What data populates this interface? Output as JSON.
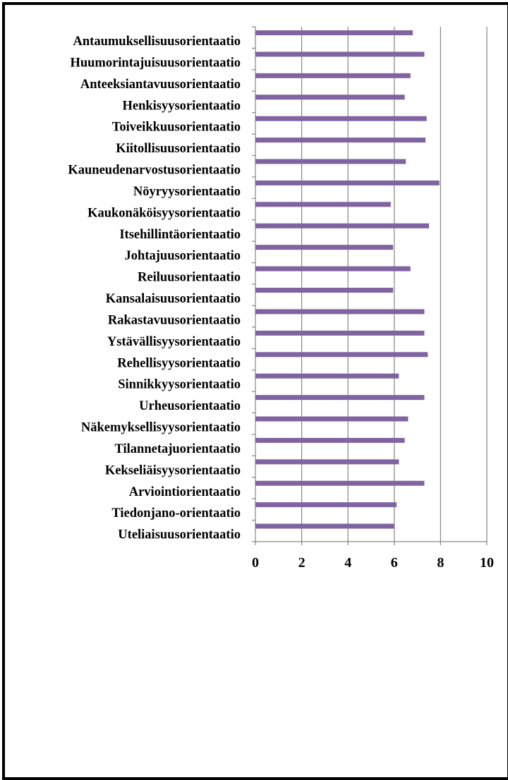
{
  "chart_data": {
    "type": "bar",
    "orientation": "horizontal",
    "categories": [
      "Antaumuksellisuusorientaatio",
      "Huumorintajuisuusorientaatio",
      "Anteeksiantavuusorientaatio",
      "Henkisyysorientaatio",
      "Toiveikkuusorientaatio",
      "Kiitollisuusorientaatio",
      "Kauneudenarvostusorientaatio",
      "Nöyryysorientaatio",
      "Kaukonäköisyysorientaatio",
      "Itsehillintäorientaatio",
      "Johtajuusorientaatio",
      "Reiluusorientaatio",
      "Kansalaisuusorientaatio",
      "Rakastavuusorientaatio",
      "Ystävällisyysorientaatio",
      "Rehellisyysorientaatio",
      "Sinnikkyysorientaatio",
      "Urheusorientaatio",
      "Näkemyksellisyysorientaatio",
      "Tilannetajuorientaatio",
      "Kekseliäisyysorientaatio",
      "Arviointiorientaatio",
      "Tiedonjano-orientaatio",
      "Uteliaisuusorientaatio"
    ],
    "values": [
      6.8,
      7.3,
      6.7,
      6.45,
      7.4,
      7.35,
      6.5,
      7.95,
      5.85,
      7.5,
      5.95,
      6.7,
      5.95,
      7.3,
      7.3,
      7.45,
      6.2,
      7.3,
      6.6,
      6.45,
      6.2,
      7.3,
      6.1,
      6.0
    ],
    "xlim": [
      0,
      10
    ],
    "xticks": [
      "0",
      "2",
      "4",
      "6",
      "8",
      "10"
    ],
    "grid": true,
    "title": "",
    "xlabel": "",
    "ylabel": "",
    "colors": {
      "bar": "#8064A2",
      "grid": "#868686",
      "axis": "#868686"
    }
  }
}
